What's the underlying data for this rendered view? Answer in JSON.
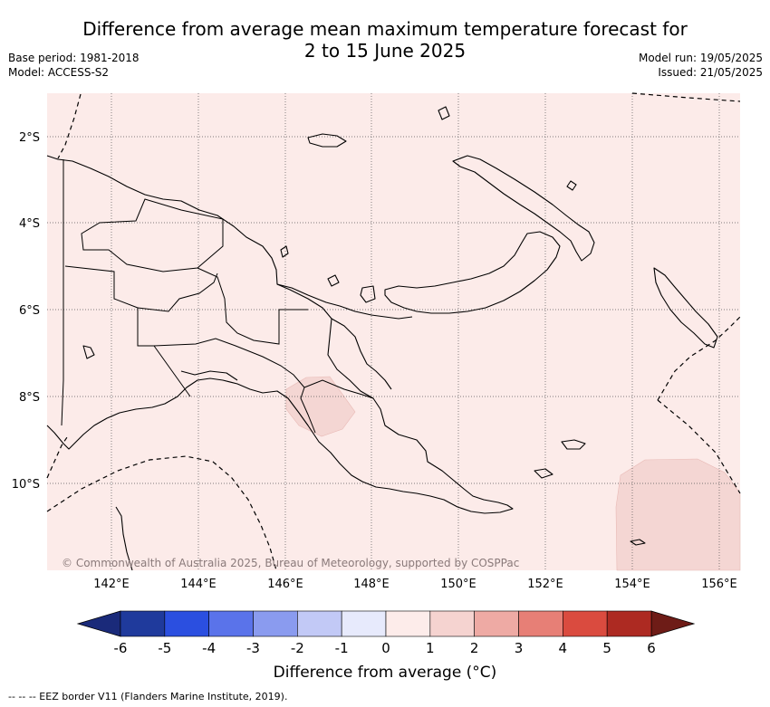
{
  "header": {
    "title_line1": "Difference from average mean maximum temperature forecast for",
    "title_line2": "2 to 15 June 2025",
    "base_period": "Base period: 1981-2018",
    "model": "Model: ACCESS-S2",
    "model_run": "Model run: 19/05/2025",
    "issued": "Issued: 21/05/2025"
  },
  "map": {
    "background_color": "#fcebe9",
    "anomaly_patch_color": "#f4d6d3",
    "lat_labels": [
      "2°S",
      "4°S",
      "6°S",
      "8°S",
      "10°S"
    ],
    "lon_labels": [
      "142°E",
      "144°E",
      "146°E",
      "148°E",
      "150°E",
      "152°E",
      "154°E",
      "156°E"
    ],
    "credit": "© Commonwealth of Australia 2025, Bureau of Meteorology, supported by COSPPac"
  },
  "colorbar": {
    "ticks": [
      "-6",
      "-5",
      "-4",
      "-3",
      "-2",
      "-1",
      "0",
      "1",
      "2",
      "3",
      "4",
      "5",
      "6"
    ],
    "colors": [
      "#1f3a9c",
      "#2b4fe0",
      "#5a73ea",
      "#8a9bef",
      "#c2c9f6",
      "#e7eafc",
      "#fdecea",
      "#f5d3d0",
      "#eeaaa4",
      "#e77f76",
      "#da4b3f",
      "#ad2a22"
    ],
    "under_color": "#1a2a7a",
    "over_color": "#6e1c17",
    "title": "Difference from average (°C)"
  },
  "footer": {
    "legend": "--  --  -- EEZ border V11 (Flanders Marine Institute, 2019)."
  }
}
